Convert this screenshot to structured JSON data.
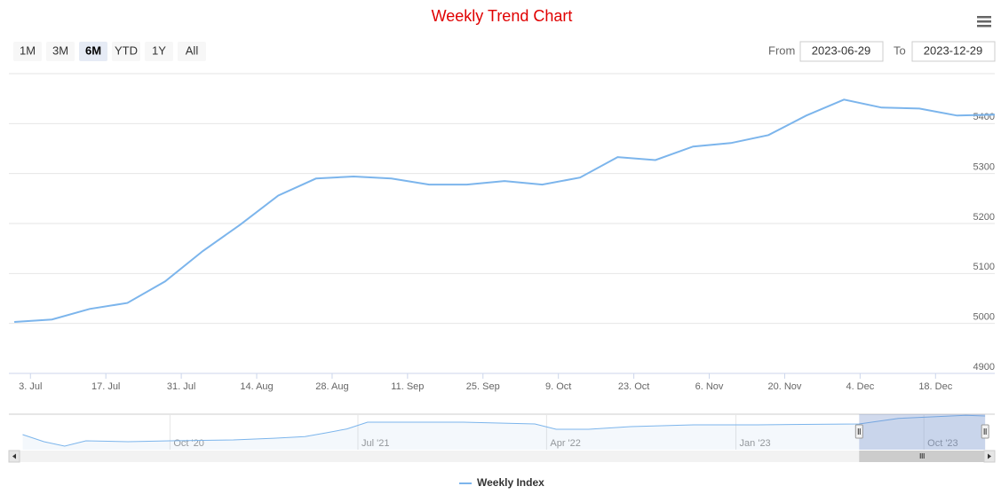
{
  "range_selector": {
    "buttons": [
      "1M",
      "3M",
      "6M",
      "YTD",
      "1Y",
      "All"
    ],
    "selected": 2,
    "from_label": "From",
    "from": "2023-06-29",
    "to_label": "To",
    "to": "2023-12-29"
  },
  "chart_data": {
    "type": "line",
    "title": "Weekly Trend Chart",
    "title_color": "#e00000",
    "x": [
      "2023-06-30",
      "2023-07-07",
      "2023-07-14",
      "2023-07-21",
      "2023-07-28",
      "2023-08-04",
      "2023-08-11",
      "2023-08-18",
      "2023-08-25",
      "2023-09-01",
      "2023-09-08",
      "2023-09-15",
      "2023-09-22",
      "2023-09-29",
      "2023-10-06",
      "2023-10-13",
      "2023-10-20",
      "2023-10-27",
      "2023-11-03",
      "2023-11-10",
      "2023-11-17",
      "2023-11-24",
      "2023-12-01",
      "2023-12-08",
      "2023-12-15",
      "2023-12-22",
      "2023-12-29"
    ],
    "series": [
      {
        "name": "Weekly Index",
        "color": "#7cb5ec",
        "values": [
          5003,
          5008,
          5029,
          5041,
          5084,
          5145,
          5198,
          5256,
          5290,
          5294,
          5290,
          5278,
          5278,
          5285,
          5278,
          5292,
          5333,
          5327,
          5354,
          5361,
          5377,
          5416,
          5448,
          5432,
          5430,
          5416,
          5418
        ]
      }
    ],
    "xlim": [
      "2023-06-29",
      "2023-12-29"
    ],
    "xticks": [
      {
        "value": "2023-07-03",
        "label": "3. Jul"
      },
      {
        "value": "2023-07-17",
        "label": "17. Jul"
      },
      {
        "value": "2023-07-31",
        "label": "31. Jul"
      },
      {
        "value": "2023-08-14",
        "label": "14. Aug"
      },
      {
        "value": "2023-08-28",
        "label": "28. Aug"
      },
      {
        "value": "2023-09-11",
        "label": "11. Sep"
      },
      {
        "value": "2023-09-25",
        "label": "25. Sep"
      },
      {
        "value": "2023-10-09",
        "label": "9. Oct"
      },
      {
        "value": "2023-10-23",
        "label": "23. Oct"
      },
      {
        "value": "2023-11-06",
        "label": "6. Nov"
      },
      {
        "value": "2023-11-20",
        "label": "20. Nov"
      },
      {
        "value": "2023-12-04",
        "label": "4. Dec"
      },
      {
        "value": "2023-12-18",
        "label": "18. Dec"
      }
    ],
    "ylim": [
      4900,
      5500
    ],
    "yticks": [
      4900,
      5000,
      5100,
      5200,
      5300,
      5400
    ],
    "grid": true,
    "navigator": {
      "x": [
        "2020-03-01",
        "2020-04-01",
        "2020-05-01",
        "2020-06-01",
        "2020-08-01",
        "2020-10-01",
        "2021-01-01",
        "2021-03-01",
        "2021-04-15",
        "2021-05-15",
        "2021-06-15",
        "2021-07-15",
        "2021-09-01",
        "2021-12-01",
        "2022-03-15",
        "2022-04-15",
        "2022-06-01",
        "2022-08-01",
        "2022-11-01",
        "2023-02-01",
        "2023-06-29",
        "2023-08-25",
        "2023-12-01",
        "2023-12-29"
      ],
      "values": [
        4441,
        4069,
        3837,
        4115,
        4070,
        4115,
        4160,
        4250,
        4340,
        4530,
        4740,
        5092,
        5092,
        5092,
        5000,
        4720,
        4720,
        4860,
        4953,
        4953,
        5000,
        5290,
        5448,
        5418
      ],
      "xlim": [
        "2020-02-10",
        "2024-01-12"
      ],
      "ylim": [
        3650,
        5510
      ],
      "xticks": [
        {
          "value": "2020-10-01",
          "label": "Oct '20"
        },
        {
          "value": "2021-07-01",
          "label": "Jul '21"
        },
        {
          "value": "2022-04-01",
          "label": "Apr '22"
        },
        {
          "value": "2023-01-01",
          "label": "Jan '23"
        },
        {
          "value": "2023-10-01",
          "label": "Oct '23"
        }
      ]
    }
  }
}
